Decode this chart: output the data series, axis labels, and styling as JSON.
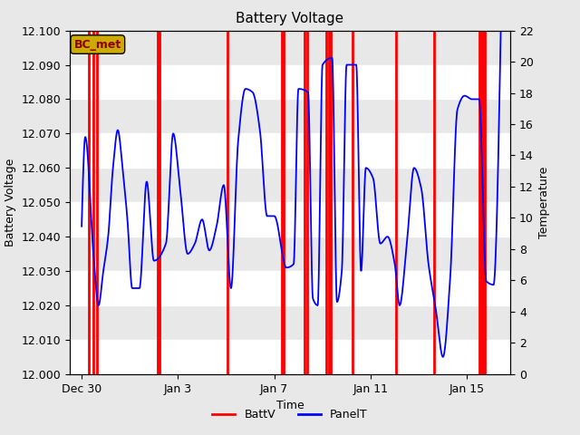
{
  "title": "Battery Voltage",
  "xlabel": "Time",
  "ylabel_left": "Battery Voltage",
  "ylabel_right": "Temperature",
  "ylim_left": [
    12.0,
    12.1
  ],
  "ylim_right": [
    0,
    22
  ],
  "yticks_left": [
    12.0,
    12.01,
    12.02,
    12.03,
    12.04,
    12.05,
    12.06,
    12.07,
    12.08,
    12.09,
    12.1
  ],
  "yticks_right": [
    0,
    2,
    4,
    6,
    8,
    10,
    12,
    14,
    16,
    18,
    20,
    22
  ],
  "bg_color": "#e8e8e8",
  "strip_color": "#ffffff",
  "annotation_text": "BC_met",
  "annotation_color": "#8B0000",
  "annotation_bg": "#ccaa00",
  "red_line_color": "#ff0000",
  "blue_line_color": "#0000ff",
  "xlim": [
    -0.5,
    17.8
  ],
  "tick_labels": [
    "Dec 30",
    "Jan 3",
    "Jan 7",
    "Jan 11",
    "Jan 15"
  ],
  "tick_positions": [
    0,
    4,
    8,
    12,
    16
  ],
  "red_spikes": [
    0.3,
    0.5,
    0.65,
    3.15,
    3.2,
    3.25,
    6.05,
    8.3,
    8.4,
    9.25,
    9.35,
    10.15,
    10.25,
    10.35,
    11.25,
    13.05,
    14.65,
    16.5,
    16.6,
    16.65,
    16.75
  ],
  "legend_items": [
    {
      "label": "BattV",
      "color": "#ff0000"
    },
    {
      "label": "PanelT",
      "color": "#0000ff"
    }
  ],
  "blue_t": [
    0.0,
    0.15,
    0.5,
    0.7,
    0.9,
    1.1,
    1.3,
    1.5,
    1.7,
    1.9,
    2.1,
    2.4,
    2.7,
    3.0,
    3.5,
    3.8,
    4.1,
    4.4,
    4.7,
    5.0,
    5.3,
    5.6,
    5.9,
    6.2,
    6.5,
    6.8,
    7.1,
    7.4,
    7.7,
    8.0,
    8.5,
    8.8,
    9.0,
    9.4,
    9.6,
    9.8,
    10.0,
    10.4,
    10.6,
    10.8,
    11.0,
    11.4,
    11.6,
    11.8,
    12.1,
    12.4,
    12.7,
    13.0,
    13.2,
    13.5,
    13.8,
    14.1,
    14.4,
    14.7,
    15.0,
    15.3,
    15.6,
    15.9,
    16.2,
    16.5,
    16.8,
    17.1,
    17.4
  ],
  "blue_v": [
    12.043,
    12.069,
    12.034,
    12.02,
    12.03,
    12.04,
    12.06,
    12.071,
    12.06,
    12.045,
    12.025,
    12.025,
    12.056,
    12.033,
    12.038,
    12.07,
    12.053,
    12.035,
    12.038,
    12.045,
    12.036,
    12.043,
    12.055,
    12.025,
    12.068,
    12.083,
    12.082,
    12.071,
    12.046,
    12.046,
    12.031,
    12.032,
    12.083,
    12.082,
    12.022,
    12.02,
    12.09,
    12.092,
    12.021,
    12.03,
    12.09,
    12.09,
    12.03,
    12.06,
    12.057,
    12.038,
    12.04,
    12.032,
    12.02,
    12.038,
    12.06,
    12.054,
    12.032,
    12.019,
    12.005,
    12.028,
    12.077,
    12.081,
    12.08,
    12.08,
    12.027,
    12.026,
    12.1
  ]
}
